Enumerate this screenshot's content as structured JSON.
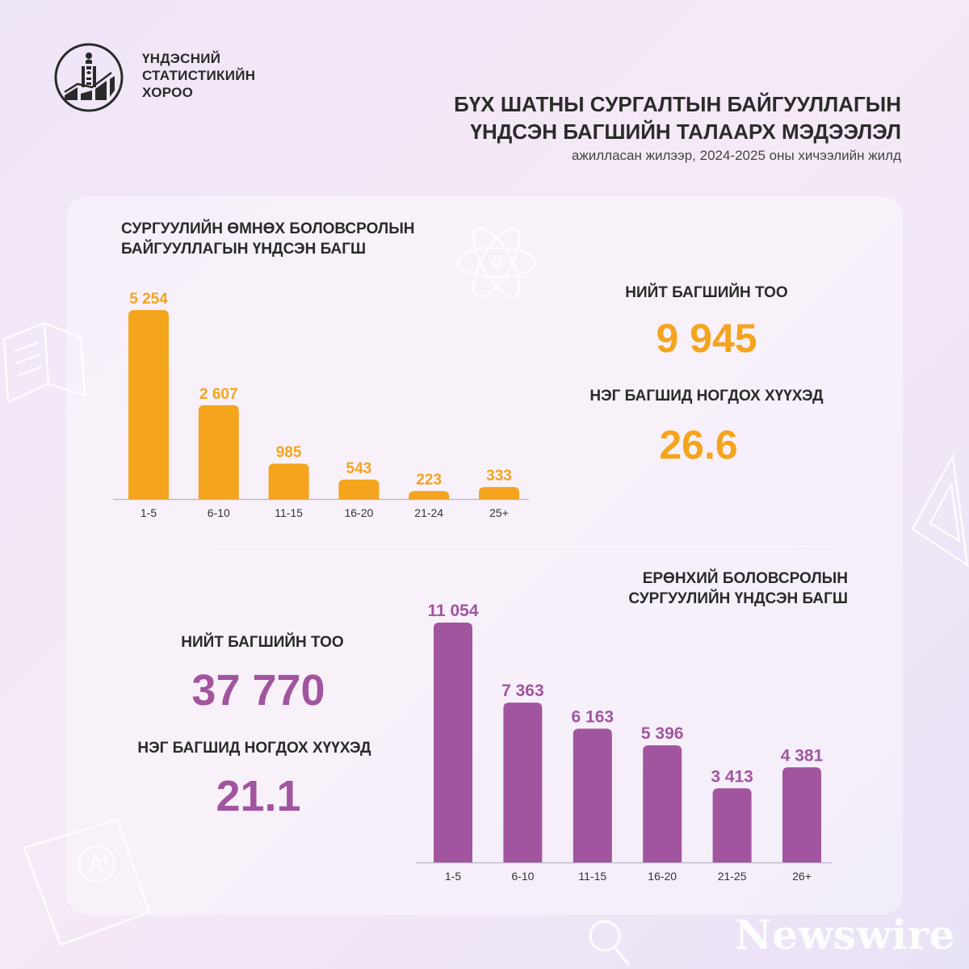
{
  "org": {
    "lines": [
      "ҮНДЭСНИЙ",
      "СТАТИСТИКИЙН",
      "ХОРОО"
    ]
  },
  "header": {
    "title_lines": [
      "БҮХ ШАТНЫ СУРГАЛТЫН БАЙГУУЛЛАГЫН",
      "ҮНДСЭН БАГШИЙН ТАЛААРХ МЭДЭЭЛЭЛ"
    ],
    "subtitle": "ажилласан жилээр, 2024-2025 оны хичээлийн жилд"
  },
  "preschool": {
    "title_lines": [
      "СУРГУУЛИЙН ӨМНӨХ БОЛОВСРОЛЫН",
      "БАЙГУУЛЛАГЫН ҮНДСЭН БАГШ"
    ],
    "total_label": "НИЙТ БАГШИЙН ТОО",
    "total_value": "9 945",
    "ratio_label": "НЭГ БАГШИД НОГДОХ ХҮҮХЭД",
    "ratio_value": "26.6"
  },
  "general": {
    "title_lines": [
      "ЕРӨНХИЙ БОЛОВСРОЛЫН",
      "СУРГУУЛИЙН ҮНДСЭН БАГШ"
    ],
    "total_label": "НИЙТ БАГШИЙН ТОО",
    "total_value": "37 770",
    "ratio_label": "НЭГ БАГШИД НОГДОХ ХҮҮХЭД",
    "ratio_value": "21.1"
  },
  "colors": {
    "orange": "#f4a41d",
    "purple": "#a2559f"
  },
  "watermark": "Newswire",
  "chart_data": [
    {
      "type": "bar",
      "title": "СУРГУУЛИЙН ӨМНӨХ БОЛОВСРОЛЫН БАЙГУУЛЛАГЫН ҮНДСЭН БАГШ",
      "categories": [
        "1-5",
        "6-10",
        "11-15",
        "16-20",
        "21-24",
        "25+"
      ],
      "values": [
        5254,
        2607,
        985,
        543,
        223,
        333
      ],
      "value_labels": [
        "5 254",
        "2 607",
        "985",
        "543",
        "223",
        "333"
      ],
      "ylim": [
        0,
        5254
      ],
      "color": "#f4a41d",
      "grid": false
    },
    {
      "type": "bar",
      "title": "ЕРӨНХИЙ БОЛОВСРОЛЫН СУРГУУЛИЙН ҮНДСЭН БАГШ",
      "categories": [
        "1-5",
        "6-10",
        "11-15",
        "16-20",
        "21-25",
        "26+"
      ],
      "values": [
        11054,
        7363,
        6163,
        5396,
        3413,
        4381
      ],
      "value_labels": [
        "11 054",
        "7 363",
        "6 163",
        "5 396",
        "3 413",
        "4 381"
      ],
      "ylim": [
        0,
        11054
      ],
      "color": "#a2559f",
      "grid": false
    }
  ]
}
